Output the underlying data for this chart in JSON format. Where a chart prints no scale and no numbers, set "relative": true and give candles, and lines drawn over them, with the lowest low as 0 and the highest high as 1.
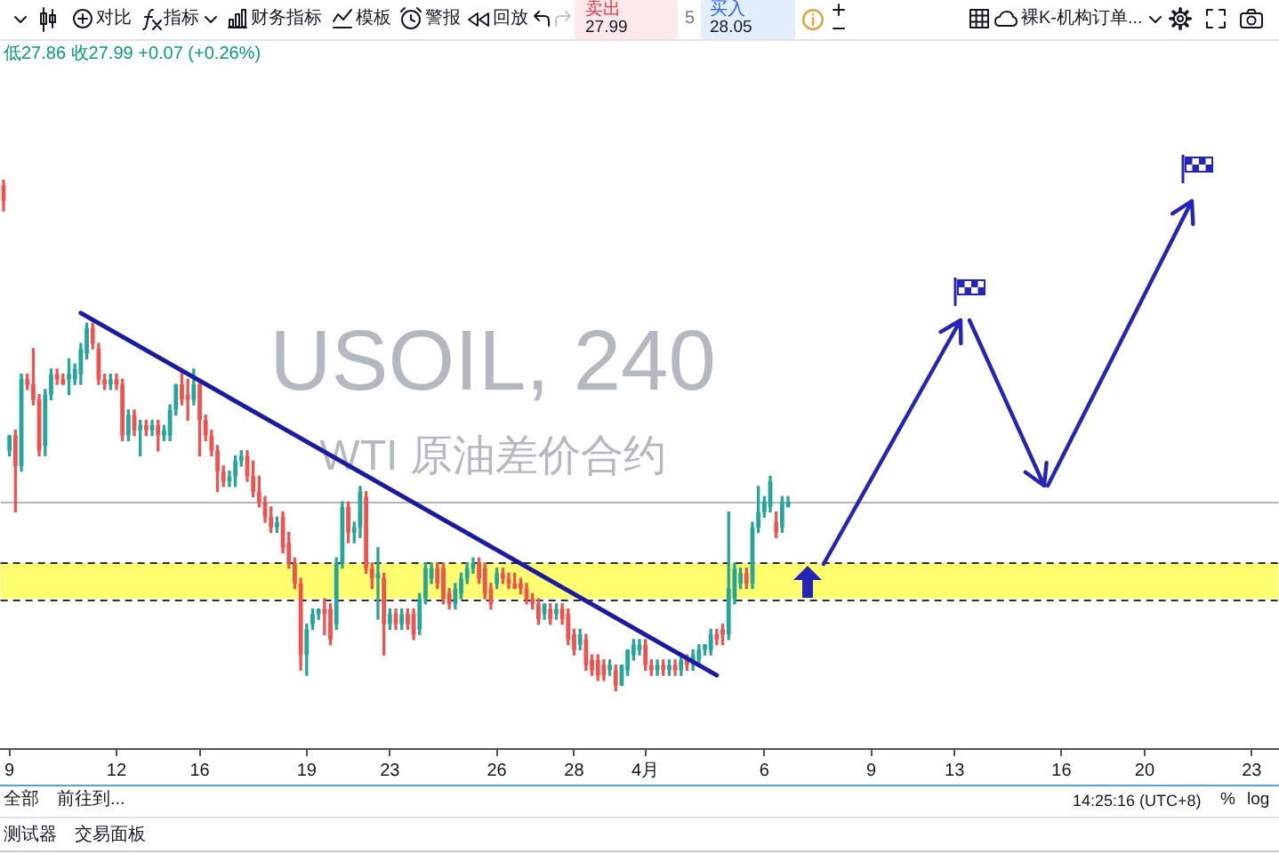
{
  "chart_data": {
    "type": "candlestick",
    "title": "USOIL, 240",
    "subtitle": "WTI 原油差价合约",
    "relative": true,
    "categories": [
      null,
      "9",
      null,
      null,
      null,
      null,
      null,
      null,
      null,
      null,
      null,
      null,
      null,
      null,
      null,
      null,
      null,
      null,
      null,
      "12",
      null,
      null,
      null,
      null,
      null,
      null,
      null,
      null,
      null,
      null,
      null,
      null,
      null,
      "16",
      null,
      null,
      null,
      null,
      null,
      null,
      null,
      null,
      null,
      null,
      null,
      null,
      null,
      null,
      null,
      null,
      null,
      "19",
      null,
      null,
      null,
      null,
      null,
      null,
      null,
      null,
      null,
      null,
      null,
      null,
      null,
      "23",
      null,
      null,
      null,
      null,
      null,
      null,
      null,
      null,
      null,
      null,
      null,
      null,
      null,
      null,
      null,
      null,
      null,
      "26",
      null,
      null,
      null,
      null,
      null,
      null,
      null,
      null,
      null,
      null,
      null,
      null,
      "28",
      null,
      null,
      null,
      null,
      null,
      null,
      null,
      null,
      null,
      null,
      null,
      "4月",
      null,
      null,
      null,
      null,
      null,
      null,
      null,
      null,
      null,
      null,
      null,
      null,
      null,
      null,
      null,
      null,
      null,
      null,
      null,
      "6",
      null,
      null,
      null,
      null,
      null,
      null,
      null,
      null,
      null,
      null,
      null,
      null,
      null,
      null,
      null,
      null,
      null,
      "9",
      null,
      null,
      null,
      null,
      null,
      null,
      null,
      null,
      null,
      null,
      null,
      null,
      null,
      "13",
      null,
      null,
      null,
      null,
      null,
      null,
      null,
      null,
      null,
      null,
      null,
      null,
      null,
      null,
      null,
      null,
      null,
      "16",
      null,
      null,
      null,
      null,
      null,
      null,
      null,
      null,
      null,
      null,
      null,
      null,
      null,
      "20",
      null,
      null,
      null,
      null,
      null,
      null,
      null,
      null,
      null,
      null,
      null,
      null,
      null,
      null,
      null,
      null,
      null,
      "23",
      null,
      null,
      null,
      null
    ],
    "ohlc": [
      [
        0.99,
        1,
        0.94,
        0.96
      ],
      [
        0.47,
        0.5,
        0.46,
        0.5
      ],
      [
        0.5,
        0.51,
        0.35,
        0.44
      ],
      [
        0.44,
        0.62,
        0.43,
        0.61
      ],
      [
        0.61,
        0.62,
        0.59,
        0.6
      ],
      [
        0.6,
        0.67,
        0.56,
        0.57
      ],
      [
        0.57,
        0.58,
        0.46,
        0.47
      ],
      [
        0.48,
        0.59,
        0.46,
        0.58
      ],
      [
        0.58,
        0.63,
        0.57,
        0.62
      ],
      [
        0.62,
        0.63,
        0.6,
        0.61
      ],
      [
        0.61,
        0.62,
        0.6,
        0.6
      ],
      [
        0.61,
        0.65,
        0.58,
        0.62
      ],
      [
        0.61,
        0.64,
        0.6,
        0.63
      ],
      [
        0.62,
        0.68,
        0.6,
        0.67
      ],
      [
        0.66,
        0.72,
        0.65,
        0.71
      ],
      [
        0.71,
        0.72,
        0.67,
        0.68
      ],
      [
        0.67,
        0.68,
        0.6,
        0.61
      ],
      [
        0.61,
        0.62,
        0.59,
        0.6
      ],
      [
        0.6,
        0.62,
        0.59,
        0.61
      ],
      [
        0.61,
        0.62,
        0.59,
        0.6
      ],
      [
        0.6,
        0.61,
        0.49,
        0.5
      ],
      [
        0.5,
        0.55,
        0.49,
        0.54
      ],
      [
        0.54,
        0.55,
        0.5,
        0.51
      ],
      [
        0.51,
        0.53,
        0.46,
        0.52
      ],
      [
        0.52,
        0.53,
        0.5,
        0.51
      ],
      [
        0.51,
        0.53,
        0.5,
        0.52
      ],
      [
        0.52,
        0.53,
        0.47,
        0.5
      ],
      [
        0.5,
        0.52,
        0.49,
        0.51
      ],
      [
        0.5,
        0.56,
        0.49,
        0.55
      ],
      [
        0.55,
        0.6,
        0.54,
        0.6
      ],
      [
        0.6,
        0.63,
        0.56,
        0.57
      ],
      [
        0.58,
        0.61,
        0.53,
        0.57
      ],
      [
        0.57,
        0.63,
        0.56,
        0.6
      ],
      [
        0.6,
        0.61,
        0.46,
        0.53
      ],
      [
        0.53,
        0.54,
        0.49,
        0.5
      ],
      [
        0.5,
        0.51,
        0.46,
        0.47
      ],
      [
        0.47,
        0.48,
        0.39,
        0.43
      ],
      [
        0.43,
        0.44,
        0.4,
        0.41
      ],
      [
        0.41,
        0.43,
        0.4,
        0.42
      ],
      [
        0.42,
        0.46,
        0.4,
        0.45
      ],
      [
        0.45,
        0.47,
        0.44,
        0.46
      ],
      [
        0.46,
        0.47,
        0.41,
        0.42
      ],
      [
        0.42,
        0.45,
        0.38,
        0.39
      ],
      [
        0.39,
        0.42,
        0.36,
        0.37
      ],
      [
        0.37,
        0.38,
        0.33,
        0.34
      ],
      [
        0.34,
        0.36,
        0.31,
        0.32
      ],
      [
        0.32,
        0.34,
        0.31,
        0.33
      ],
      [
        0.34,
        0.35,
        0.27,
        0.28
      ],
      [
        0.29,
        0.31,
        0.24,
        0.25
      ],
      [
        0.25,
        0.26,
        0.2,
        0.21
      ],
      [
        0.21,
        0.22,
        0.04,
        0.07
      ],
      [
        0.07,
        0.13,
        0.03,
        0.12
      ],
      [
        0.13,
        0.16,
        0.12,
        0.15
      ],
      [
        0.15,
        0.16,
        0.14,
        0.16
      ],
      [
        0.16,
        0.18,
        0.11,
        0.15
      ],
      [
        0.16,
        0.17,
        0.09,
        0.1
      ],
      [
        0.13,
        0.26,
        0.12,
        0.25
      ],
      [
        0.25,
        0.37,
        0.24,
        0.36
      ],
      [
        0.36,
        0.37,
        0.29,
        0.31
      ],
      [
        0.31,
        0.33,
        0.29,
        0.32
      ],
      [
        0.32,
        0.4,
        0.3,
        0.39
      ],
      [
        0.38,
        0.39,
        0.23,
        0.24
      ],
      [
        0.24,
        0.25,
        0.2,
        0.22
      ],
      [
        0.22,
        0.28,
        0.14,
        0.23
      ],
      [
        0.22,
        0.23,
        0.07,
        0.13
      ],
      [
        0.13,
        0.16,
        0.12,
        0.15
      ],
      [
        0.15,
        0.16,
        0.12,
        0.13
      ],
      [
        0.13,
        0.16,
        0.12,
        0.15
      ],
      [
        0.15,
        0.16,
        0.12,
        0.13
      ],
      [
        0.15,
        0.16,
        0.1,
        0.11
      ],
      [
        0.12,
        0.19,
        0.11,
        0.18
      ],
      [
        0.18,
        0.25,
        0.17,
        0.24
      ],
      [
        0.22,
        0.25,
        0.21,
        0.24
      ],
      [
        0.24,
        0.25,
        0.2,
        0.21
      ],
      [
        0.24,
        0.25,
        0.17,
        0.18
      ],
      [
        0.19,
        0.2,
        0.16,
        0.17
      ],
      [
        0.17,
        0.21,
        0.16,
        0.2
      ],
      [
        0.19,
        0.23,
        0.18,
        0.22
      ],
      [
        0.22,
        0.25,
        0.21,
        0.24
      ],
      [
        0.24,
        0.26,
        0.23,
        0.25
      ],
      [
        0.25,
        0.26,
        0.21,
        0.22
      ],
      [
        0.24,
        0.25,
        0.18,
        0.19
      ],
      [
        0.2,
        0.21,
        0.16,
        0.17
      ],
      [
        0.21,
        0.24,
        0.2,
        0.23
      ],
      [
        0.23,
        0.24,
        0.21,
        0.22
      ],
      [
        0.22,
        0.23,
        0.2,
        0.21
      ],
      [
        0.21,
        0.23,
        0.2,
        0.2
      ],
      [
        0.21,
        0.22,
        0.19,
        0.2
      ],
      [
        0.2,
        0.21,
        0.17,
        0.18
      ],
      [
        0.18,
        0.19,
        0.16,
        0.17
      ],
      [
        0.17,
        0.18,
        0.13,
        0.14
      ],
      [
        0.15,
        0.17,
        0.14,
        0.17
      ],
      [
        0.16,
        0.17,
        0.13,
        0.14
      ],
      [
        0.15,
        0.17,
        0.14,
        0.16
      ],
      [
        0.16,
        0.17,
        0.13,
        0.14
      ],
      [
        0.15,
        0.16,
        0.09,
        0.1
      ],
      [
        0.11,
        0.12,
        0.07,
        0.08
      ],
      [
        0.09,
        0.12,
        0.08,
        0.11
      ],
      [
        0.1,
        0.11,
        0.04,
        0.05
      ],
      [
        0.06,
        0.07,
        0.03,
        0.04
      ],
      [
        0.06,
        0.07,
        0.02,
        0.03
      ],
      [
        0.05,
        0.06,
        0.02,
        0.03
      ],
      [
        0.04,
        0.06,
        0.03,
        0.05
      ],
      [
        0.04,
        0.05,
        0,
        0.01
      ],
      [
        0.01,
        0.05,
        0.01,
        0.05
      ],
      [
        0.04,
        0.08,
        0.03,
        0.08
      ],
      [
        0.07,
        0.1,
        0.06,
        0.09
      ],
      [
        0.08,
        0.1,
        0.07,
        0.09
      ],
      [
        0.09,
        0.1,
        0.04,
        0.05
      ],
      [
        0.05,
        0.06,
        0.03,
        0.04
      ],
      [
        0.04,
        0.06,
        0.03,
        0.05
      ],
      [
        0.05,
        0.06,
        0.03,
        0.04
      ],
      [
        0.04,
        0.06,
        0.03,
        0.05
      ],
      [
        0.05,
        0.06,
        0.03,
        0.04
      ],
      [
        0.04,
        0.07,
        0.03,
        0.06
      ],
      [
        0.06,
        0.07,
        0.04,
        0.05
      ],
      [
        0.05,
        0.08,
        0.04,
        0.07
      ],
      [
        0.06,
        0.09,
        0.05,
        0.08
      ],
      [
        0.08,
        0.09,
        0.07,
        0.09
      ],
      [
        0.08,
        0.12,
        0.07,
        0.11
      ],
      [
        0.11,
        0.12,
        0.09,
        0.1
      ],
      [
        0.12,
        0.13,
        0.09,
        0.11
      ],
      [
        0.11,
        0.35,
        0.1,
        0.2
      ],
      [
        0.18,
        0.25,
        0.17,
        0.24
      ],
      [
        0.21,
        0.24,
        0.2,
        0.23
      ],
      [
        0.23,
        0.24,
        0.2,
        0.21
      ],
      [
        0.21,
        0.33,
        0.2,
        0.32
      ],
      [
        0.32,
        0.4,
        0.31,
        0.35
      ],
      [
        0.35,
        0.38,
        0.34,
        0.37
      ],
      [
        0.36,
        0.42,
        0.35,
        0.41
      ],
      [
        0.33,
        0.35,
        0.3,
        0.31
      ],
      [
        0.32,
        0.38,
        0.31,
        0.37
      ],
      [
        0.36,
        0.38,
        0.36,
        0.37
      ],
      null,
      null,
      null,
      null,
      null,
      null,
      null,
      null,
      null,
      null,
      null,
      null,
      null,
      null,
      null,
      null,
      null,
      null,
      null,
      null,
      null,
      null,
      null,
      null,
      null,
      null,
      null,
      null,
      null,
      null,
      null,
      null,
      null,
      null,
      null,
      null,
      null,
      null,
      null,
      null,
      null,
      null,
      null,
      null,
      null,
      null,
      null,
      null,
      null,
      null,
      null,
      null,
      null,
      null,
      null,
      null,
      null,
      null,
      null,
      null,
      null,
      null,
      null,
      null,
      null,
      null,
      null,
      null,
      null,
      null,
      null,
      null,
      null,
      null,
      null,
      null,
      null,
      null,
      null,
      null,
      null,
      null
    ],
    "colors": [
      "#ef5350",
      "#26a69a",
      "#ef5350",
      "#26a69a",
      "#ef5350",
      "#ef5350",
      "#ef5350",
      "#26a69a",
      "#26a69a",
      "#ef5350",
      "#ef5350",
      "#26a69a",
      "#26a69a",
      "#26a69a",
      "#26a69a",
      "#ef5350",
      "#ef5350",
      "#ef5350",
      "#26a69a",
      "#ef5350",
      "#ef5350",
      "#26a69a",
      "#ef5350",
      "#26a69a",
      "#ef5350",
      "#26a69a",
      "#ef5350",
      "#26a69a",
      "#26a69a",
      "#26a69a",
      "#ef5350",
      "#ef5350",
      "#26a69a",
      "#ef5350",
      "#ef5350",
      "#ef5350",
      "#ef5350",
      "#ef5350",
      "#26a69a",
      "#26a69a",
      "#26a69a",
      "#ef5350",
      "#ef5350",
      "#ef5350",
      "#ef5350",
      "#ef5350",
      "#26a69a",
      "#ef5350",
      "#ef5350",
      "#ef5350",
      "#ef5350",
      "#26a69a",
      "#26a69a",
      "#26a69a",
      "#ef5350",
      "#ef5350",
      "#26a69a",
      "#26a69a",
      "#ef5350",
      "#26a69a",
      "#26a69a",
      "#ef5350",
      "#ef5350",
      "#26a69a",
      "#ef5350",
      "#26a69a",
      "#ef5350",
      "#26a69a",
      "#ef5350",
      "#ef5350",
      "#26a69a",
      "#26a69a",
      "#26a69a",
      "#ef5350",
      "#ef5350",
      "#ef5350",
      "#26a69a",
      "#26a69a",
      "#26a69a",
      "#26a69a",
      "#ef5350",
      "#ef5350",
      "#ef5350",
      "#26a69a",
      "#ef5350",
      "#ef5350",
      "#ef5350",
      "#ef5350",
      "#ef5350",
      "#ef5350",
      "#ef5350",
      "#26a69a",
      "#ef5350",
      "#26a69a",
      "#ef5350",
      "#ef5350",
      "#ef5350",
      "#26a69a",
      "#ef5350",
      "#ef5350",
      "#ef5350",
      "#ef5350",
      "#26a69a",
      "#ef5350",
      "#26a69a",
      "#26a69a",
      "#26a69a",
      "#26a69a",
      "#ef5350",
      "#ef5350",
      "#26a69a",
      "#ef5350",
      "#26a69a",
      "#ef5350",
      "#26a69a",
      "#ef5350",
      "#26a69a",
      "#26a69a",
      "#26a69a",
      "#26a69a",
      "#ef5350",
      "#ef5350",
      "#26a69a",
      "#26a69a",
      "#26a69a",
      "#ef5350",
      "#26a69a",
      "#26a69a",
      "#26a69a",
      "#26a69a",
      "#ef5350",
      "#26a69a",
      "#26a69a",
      null,
      null,
      null,
      null,
      null,
      null,
      null,
      null,
      null,
      null,
      null,
      null,
      null,
      null,
      null,
      null,
      null,
      null,
      null,
      null,
      null,
      null,
      null,
      null,
      null,
      null,
      null,
      null,
      null,
      null,
      null,
      null,
      null,
      null,
      null,
      null,
      null,
      null,
      null,
      null,
      null,
      null,
      null,
      null,
      null,
      null,
      null,
      null,
      null,
      null,
      null,
      null,
      null,
      null,
      null,
      null,
      null,
      null,
      null,
      null,
      null,
      null,
      null,
      null,
      null,
      null,
      null,
      null,
      null,
      null,
      null,
      null,
      null,
      null,
      null,
      null,
      null,
      null,
      null,
      null,
      null,
      null
    ],
    "series": [
      {
        "type": "line",
        "color": "#1a1aa3",
        "values": [
          null,
          null,
          null,
          null,
          null,
          null,
          null,
          null,
          null,
          null,
          null,
          null,
          null,
          0.74,
          null,
          null,
          null,
          null,
          null,
          null,
          null,
          null,
          null,
          null,
          null,
          null,
          null,
          null,
          null,
          null,
          null,
          null,
          null,
          null,
          null,
          null,
          null,
          null,
          null,
          null,
          null,
          null,
          null,
          null,
          null,
          null,
          null,
          null,
          null,
          null,
          null,
          null,
          null,
          null,
          null,
          null,
          null,
          null,
          null,
          null,
          null,
          null,
          null,
          null,
          null,
          null,
          null,
          null,
          null,
          null,
          null,
          null,
          null,
          null,
          null,
          null,
          null,
          null,
          null,
          null,
          null,
          null,
          null,
          null,
          null,
          null,
          null,
          null,
          null,
          null,
          null,
          null,
          null,
          null,
          null,
          null,
          null,
          null,
          null,
          null,
          null,
          null,
          null,
          null,
          null,
          null,
          null,
          null,
          null,
          null,
          null,
          null,
          null,
          null,
          null,
          null,
          null,
          null,
          null,
          null,
          0.03,
          null,
          null,
          null,
          null,
          null,
          null,
          null,
          null,
          null,
          null,
          null,
          null,
          null,
          null,
          null,
          null,
          null,
          null,
          null,
          null,
          null,
          null,
          null,
          null,
          null,
          null,
          null,
          null,
          null,
          null,
          null,
          null,
          null,
          null,
          null,
          null,
          null,
          null,
          null,
          null,
          null,
          null,
          null,
          null,
          null,
          null,
          null,
          null,
          null,
          null,
          null,
          null,
          null,
          null,
          null,
          null,
          null,
          null,
          null,
          null,
          null,
          null,
          null,
          null,
          null,
          null,
          null,
          null,
          null,
          null,
          null,
          null,
          null,
          null,
          null,
          null,
          null,
          null,
          null,
          null,
          null,
          null,
          null,
          null,
          null,
          null,
          null,
          null,
          null,
          null,
          null,
          null,
          null,
          null
        ]
      }
    ],
    "bands": [
      {
        "axis": "y",
        "from": 0.18,
        "to": 0.25,
        "color": "#ffff70"
      }
    ],
    "ref_lines": [
      {
        "axis": "y",
        "value": 0.37,
        "color": "#b2b5be"
      },
      {
        "axis": "y",
        "value": 0.25,
        "color": "#2a2e39",
        "line_style": "dashed"
      },
      {
        "axis": "y",
        "value": 0.18,
        "color": "#2a2e39",
        "line_style": "dashed"
      }
    ],
    "annotations": [
      "低27.86 收27.99 +0.07 (+0.26%)",
      "对比",
      "指标",
      "财务指标",
      "模板",
      "警报",
      "回放",
      "卖出",
      "27.99",
      "5",
      "买入",
      "28.05",
      "裸K-机构订单...",
      "全部",
      "前往到...",
      "14:25:16 (UTC+8)",
      "%",
      "log",
      "测试器",
      "交易面板"
    ]
  }
}
